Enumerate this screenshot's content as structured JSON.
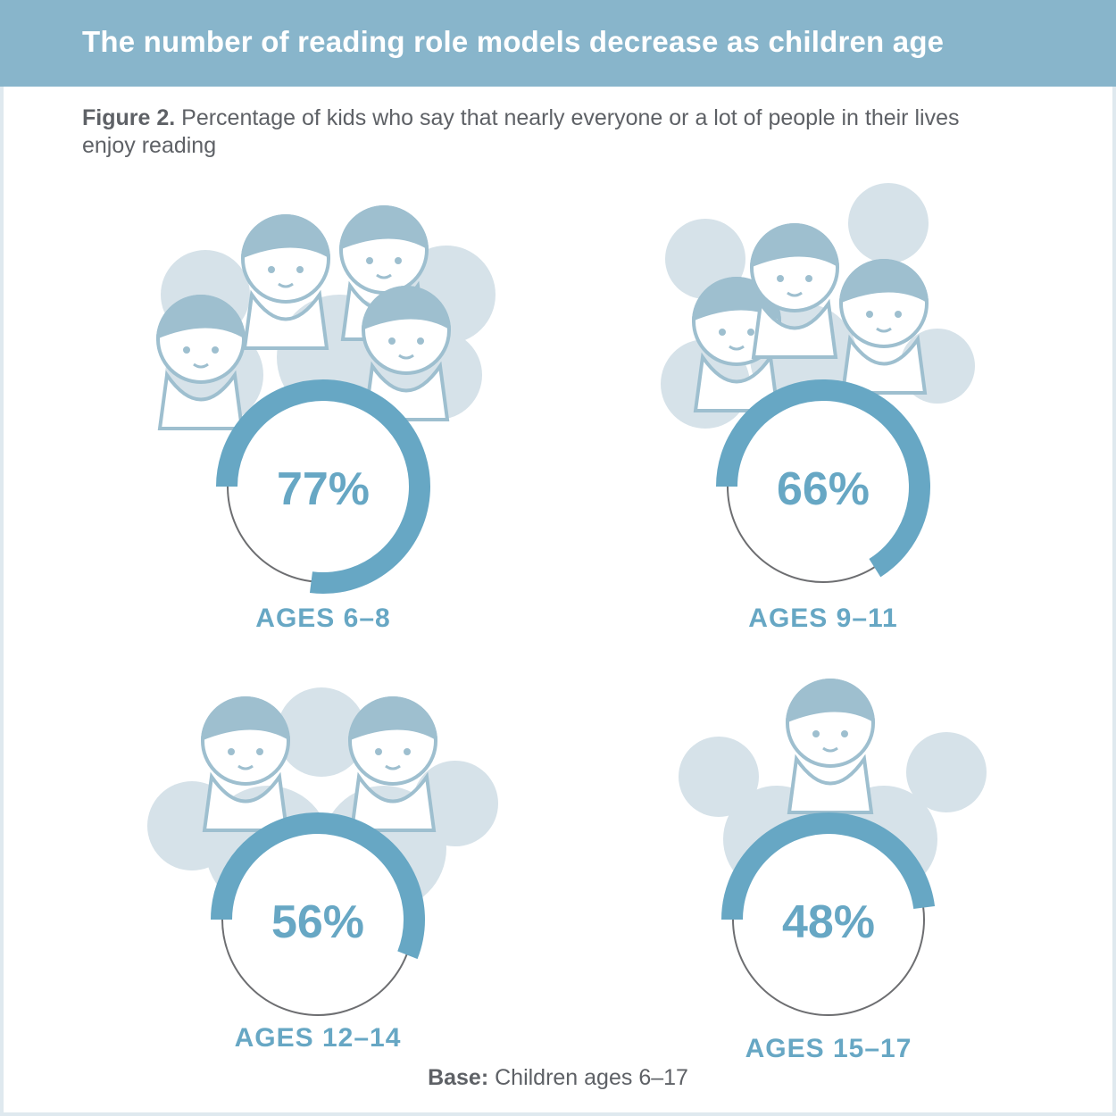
{
  "header": {
    "title": "The number of reading role models decrease as children age"
  },
  "figure": {
    "label": "Figure 2.",
    "caption": "Percentage of kids who say that nearly everyone or a lot of people in their lives enjoy reading"
  },
  "footer": {
    "base_label": "Base:",
    "base_text": "Children ages 6–17"
  },
  "colors": {
    "header": "#88b5cb",
    "accent": "#67a7c4",
    "blob": "#d6e2e9",
    "hair": "#9ebfcf",
    "ring": "#6d6e71"
  },
  "chart_data": {
    "type": "donut",
    "categories": [
      "AGES 6–8",
      "AGES 9–11",
      "AGES 12–14",
      "AGES 15–17"
    ],
    "values": [
      77,
      66,
      56,
      48
    ],
    "labels": [
      "77%",
      "66%",
      "56%",
      "48%"
    ],
    "unit": "%"
  }
}
